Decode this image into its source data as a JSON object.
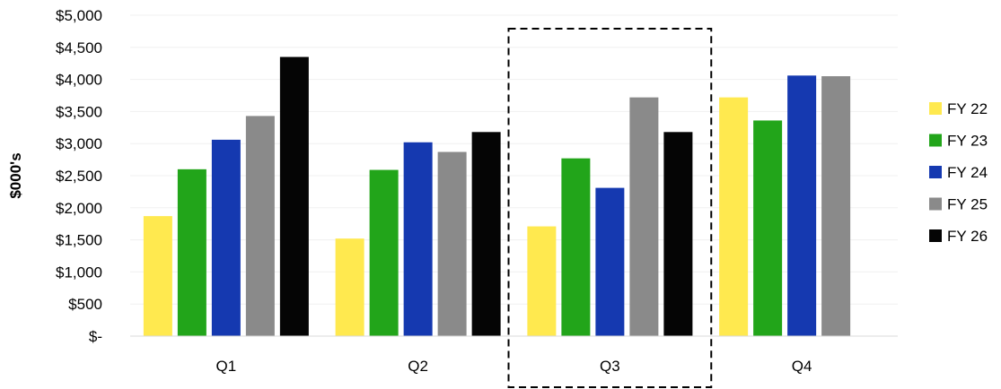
{
  "chart_data": {
    "type": "bar",
    "title": "",
    "xlabel": "",
    "ylabel": "$000's",
    "ylim": [
      0,
      5000
    ],
    "yticks": [
      0,
      500,
      1000,
      1500,
      2000,
      2500,
      3000,
      3500,
      4000,
      4500,
      5000
    ],
    "ytick_labels": [
      "$-",
      "$500",
      "$1,000",
      "$1,500",
      "$2,000",
      "$2,500",
      "$3,000",
      "$3,500",
      "$4,000",
      "$4,500",
      "$5,000"
    ],
    "categories": [
      "Q1",
      "Q2",
      "Q3",
      "Q4"
    ],
    "series": [
      {
        "name": "FY 22",
        "color": "#FFE94F",
        "values": [
          1870,
          1520,
          1710,
          3720
        ]
      },
      {
        "name": "FY 23",
        "color": "#22A51A",
        "values": [
          2600,
          2590,
          2770,
          3360
        ]
      },
      {
        "name": "FY 24",
        "color": "#1539B0",
        "values": [
          3060,
          3020,
          2310,
          4060
        ]
      },
      {
        "name": "FY 25",
        "color": "#8A8A8A",
        "values": [
          3430,
          2870,
          3720,
          4050
        ]
      },
      {
        "name": "FY 26",
        "color": "#050505",
        "values": [
          4350,
          3180,
          3180,
          null
        ]
      }
    ],
    "highlight_category": "Q3",
    "highlight_style": "dashed-box",
    "legend_position": "right",
    "grid": true,
    "grid_color": "#F0F0F0"
  }
}
